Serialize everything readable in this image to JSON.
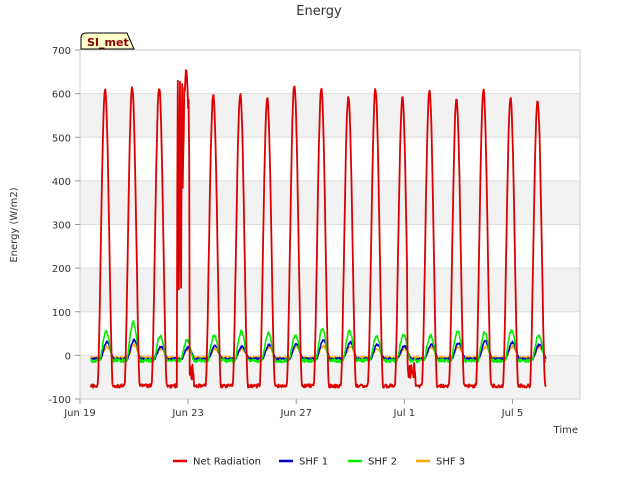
{
  "chart_data": {
    "type": "line",
    "title": "Energy",
    "xlabel": "Time",
    "ylabel": "Energy (W/m2)",
    "site_label": "SI_met",
    "ylim": [
      -100,
      700
    ],
    "xlim_days": [
      0,
      18.5
    ],
    "y_ticks": [
      -100,
      0,
      100,
      200,
      300,
      400,
      500,
      600,
      700
    ],
    "x_ticks": [
      {
        "day": 0,
        "label": "Jun 19"
      },
      {
        "day": 4,
        "label": "Jun 23"
      },
      {
        "day": 8,
        "label": "Jun 27"
      },
      {
        "day": 12,
        "label": "Jul 1"
      },
      {
        "day": 16,
        "label": "Jul 5"
      }
    ],
    "daily_peaks": {
      "Net Radiation": [
        610,
        615,
        615,
        655,
        595,
        597,
        590,
        620,
        612,
        592,
        610,
        592,
        607,
        588,
        607,
        588,
        585
      ],
      "SHF 1": [
        30,
        35,
        20,
        18,
        22,
        20,
        25,
        25,
        35,
        30,
        25,
        22,
        25,
        28,
        32,
        30,
        25
      ],
      "SHF 2": [
        55,
        75,
        45,
        35,
        47,
        55,
        50,
        45,
        62,
        55,
        45,
        48,
        45,
        55,
        52,
        58,
        47
      ],
      "SHF 3": [
        20,
        25,
        15,
        12,
        15,
        15,
        18,
        18,
        22,
        20,
        15,
        15,
        18,
        20,
        20,
        20,
        18
      ]
    },
    "night_values": {
      "Net Radiation": -70,
      "SHF 1": -8,
      "SHF 2": -12,
      "SHF 3": -5
    },
    "series": [
      {
        "name": "Net Radiation",
        "color": "#dd0000"
      },
      {
        "name": "SHF 1",
        "color": "#0000cc"
      },
      {
        "name": "SHF 2",
        "color": "#00ee00"
      },
      {
        "name": "SHF 3",
        "color": "#ffaa00"
      }
    ]
  }
}
